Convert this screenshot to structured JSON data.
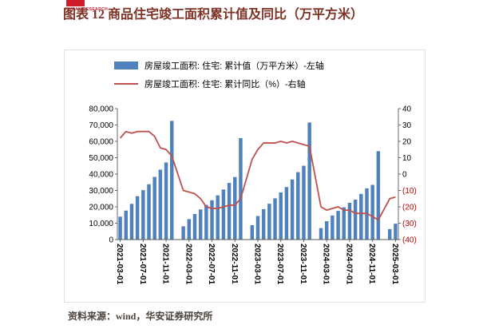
{
  "page": {
    "logo_text": "HUAAN RESEARCH",
    "title": "图表 12 商品住宅竣工面积累计值及同比（万平方米）",
    "source": "资料来源：wind，华安证券研究所"
  },
  "legend": [
    {
      "type": "bar",
      "color": "#4f81bd",
      "label": "房屋竣工面积: 住宅: 累计值（万平方米）-左轴"
    },
    {
      "type": "line",
      "color": "#c0504d",
      "label": "房屋竣工面积: 住宅: 累计同比（%）-右轴"
    }
  ],
  "chart_data": {
    "type": "bar+line",
    "x": [
      "2021-03-01",
      "2021-04-01",
      "2021-05-01",
      "2021-06-01",
      "2021-07-01",
      "2021-08-01",
      "2021-09-01",
      "2021-10-01",
      "2021-11-01",
      "2021-12-01",
      "2022-01-01",
      "2022-02-01",
      "2022-03-01",
      "2022-04-01",
      "2022-05-01",
      "2022-06-01",
      "2022-07-01",
      "2022-08-01",
      "2022-09-01",
      "2022-10-01",
      "2022-11-01",
      "2022-12-01",
      "2023-01-01",
      "2023-02-01",
      "2023-03-01",
      "2023-04-01",
      "2023-05-01",
      "2023-06-01",
      "2023-07-01",
      "2023-08-01",
      "2023-09-01",
      "2023-10-01",
      "2023-11-01",
      "2023-12-01",
      "2024-01-01",
      "2024-02-01",
      "2024-03-01",
      "2024-04-01",
      "2024-05-01",
      "2024-06-01",
      "2024-07-01",
      "2024-08-01",
      "2024-09-01",
      "2024-10-01",
      "2024-11-01",
      "2024-12-01",
      "2025-01-01",
      "2025-02-01",
      "2025-03-01"
    ],
    "x_tick_every": 4,
    "series": [
      {
        "name": "房屋竣工面积: 住宅: 累计值（万平方米）-左轴",
        "type": "bar",
        "axis": "left",
        "color": "#4f81bd",
        "values": [
          14000,
          17700,
          21800,
          26500,
          30200,
          33800,
          38300,
          42700,
          47100,
          72500,
          null,
          8100,
          12500,
          15600,
          18400,
          21200,
          24000,
          27000,
          30600,
          34600,
          38200,
          62000,
          null,
          8800,
          14400,
          18600,
          21900,
          25200,
          28800,
          32100,
          36700,
          41200,
          45100,
          71500,
          null,
          7000,
          11200,
          14700,
          17500,
          19700,
          22500,
          24400,
          27900,
          31300,
          33400,
          54000,
          null,
          6400,
          9700
        ]
      },
      {
        "name": "房屋竣工面积: 住宅: 累计同比（%）-右轴",
        "type": "line",
        "axis": "right",
        "color": "#c0504d",
        "values": [
          22,
          26,
          25,
          26,
          26,
          26,
          23,
          16,
          15,
          11,
          null,
          -10,
          -11,
          -12,
          -15,
          -20,
          -21,
          -21,
          -20,
          -19,
          -19,
          -15,
          null,
          9,
          15,
          19,
          19,
          19,
          20,
          19,
          20,
          19,
          18,
          17,
          null,
          -20,
          -22,
          -21,
          -20,
          -22,
          -22,
          -24,
          -24,
          -24,
          -26,
          -28,
          null,
          -15,
          -14
        ]
      }
    ],
    "left_axis": {
      "min": 0,
      "max": 80000,
      "step": 10000
    },
    "right_axis": {
      "min": -40,
      "max": 40,
      "step": 10,
      "negative_format": "parentheses",
      "negative_color": "#c00000"
    },
    "grid": false,
    "legend_position": "top"
  }
}
